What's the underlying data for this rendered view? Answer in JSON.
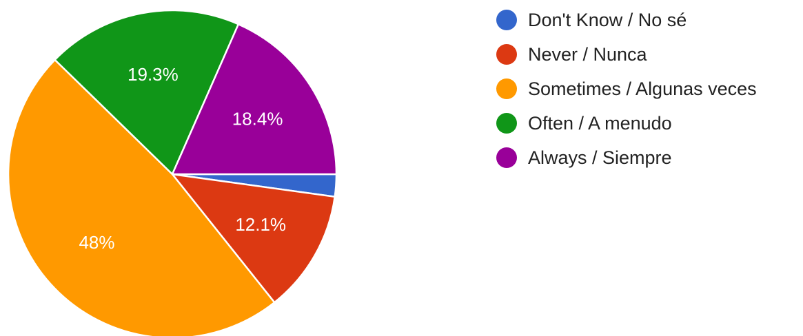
{
  "chart_data": {
    "type": "pie",
    "slices": [
      {
        "label": "Don't Know / No sé",
        "value": 2.2,
        "value_label": "",
        "color": "#3366cc"
      },
      {
        "label": "Never / Nunca",
        "value": 12.1,
        "value_label": "12.1%",
        "color": "#dc3912"
      },
      {
        "label": "Sometimes / Algunas veces",
        "value": 48,
        "value_label": "48%",
        "color": "#ff9900"
      },
      {
        "label": "Often / A menudo",
        "value": 19.3,
        "value_label": "19.3%",
        "color": "#109618"
      },
      {
        "label": "Always / Siempre",
        "value": 18.4,
        "value_label": "18.4%",
        "color": "#990099"
      }
    ],
    "legend_position": "right",
    "start_angle": "3 o'clock",
    "direction": "clockwise"
  }
}
